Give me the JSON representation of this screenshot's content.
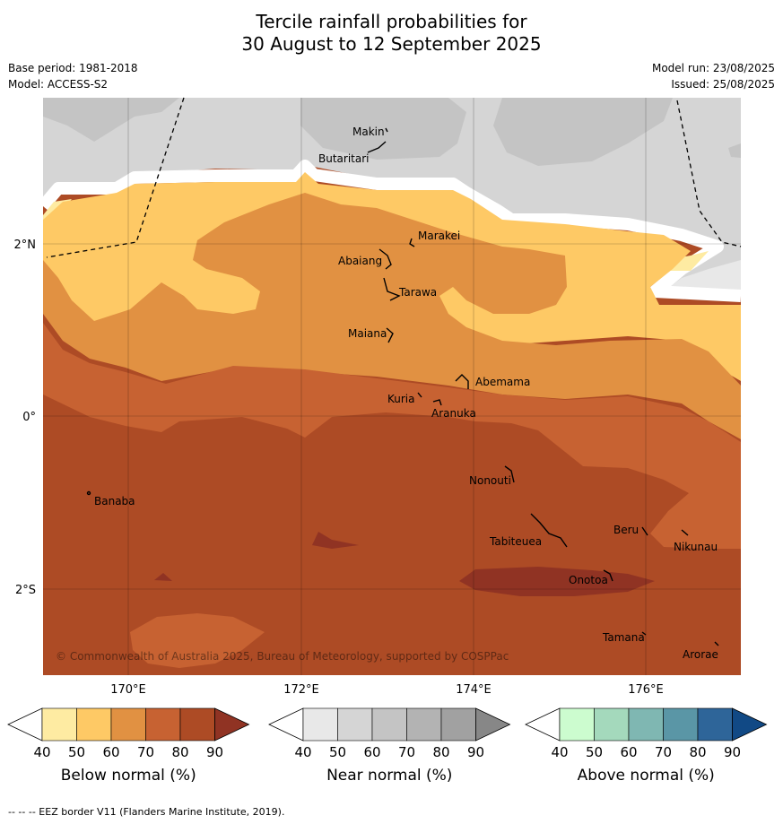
{
  "title_line1": "Tercile rainfall probabilities for",
  "title_line2": "30 August to 12 September 2025",
  "meta": {
    "base_period": "Base period: 1981-2018",
    "model": "Model: ACCESS-S2",
    "model_run": "Model run: 23/08/2025",
    "issued": "Issued: 25/08/2025"
  },
  "map": {
    "lon_labels": [
      "170°E",
      "172°E",
      "174°E",
      "176°E"
    ],
    "lat_labels": [
      "2°N",
      "0°",
      "2°S"
    ],
    "copyright": "© Commonwealth of Australia 2025, Bureau of Meteorology, supported by COSPPac",
    "places": [
      "Makin",
      "Butaritari",
      "Marakei",
      "Abaiang",
      "Tarawa",
      "Maiana",
      "Abemama",
      "Kuria",
      "Aranuka",
      "Nonouti",
      "Banaba",
      "Beru",
      "Tabiteuea",
      "Nikunau",
      "Onotoa",
      "Tamana",
      "Arorae"
    ]
  },
  "colorbars": [
    {
      "title": "Below normal (%)",
      "ticks": [
        "40",
        "50",
        "60",
        "70",
        "80",
        "90"
      ],
      "colors": [
        "#ffffff",
        "#feeba2",
        "#fec965",
        "#e19142",
        "#c76232",
        "#ad4b25",
        "#903323"
      ]
    },
    {
      "title": "Near normal (%)",
      "ticks": [
        "40",
        "50",
        "60",
        "70",
        "80",
        "90"
      ],
      "colors": [
        "#ffffff",
        "#e8e8e8",
        "#d5d5d5",
        "#c4c4c4",
        "#b3b3b3",
        "#a1a1a1",
        "#878787"
      ]
    },
    {
      "title": "Above normal (%)",
      "ticks": [
        "40",
        "50",
        "60",
        "70",
        "80",
        "90"
      ],
      "colors": [
        "#ffffff",
        "#ccfccf",
        "#a4d9bc",
        "#7fb7b2",
        "#5a96a6",
        "#2e6599",
        "#114985"
      ]
    }
  ],
  "footnote": "--  --  -- EEZ border V11 (Flanders Marine Institute, 2019)."
}
